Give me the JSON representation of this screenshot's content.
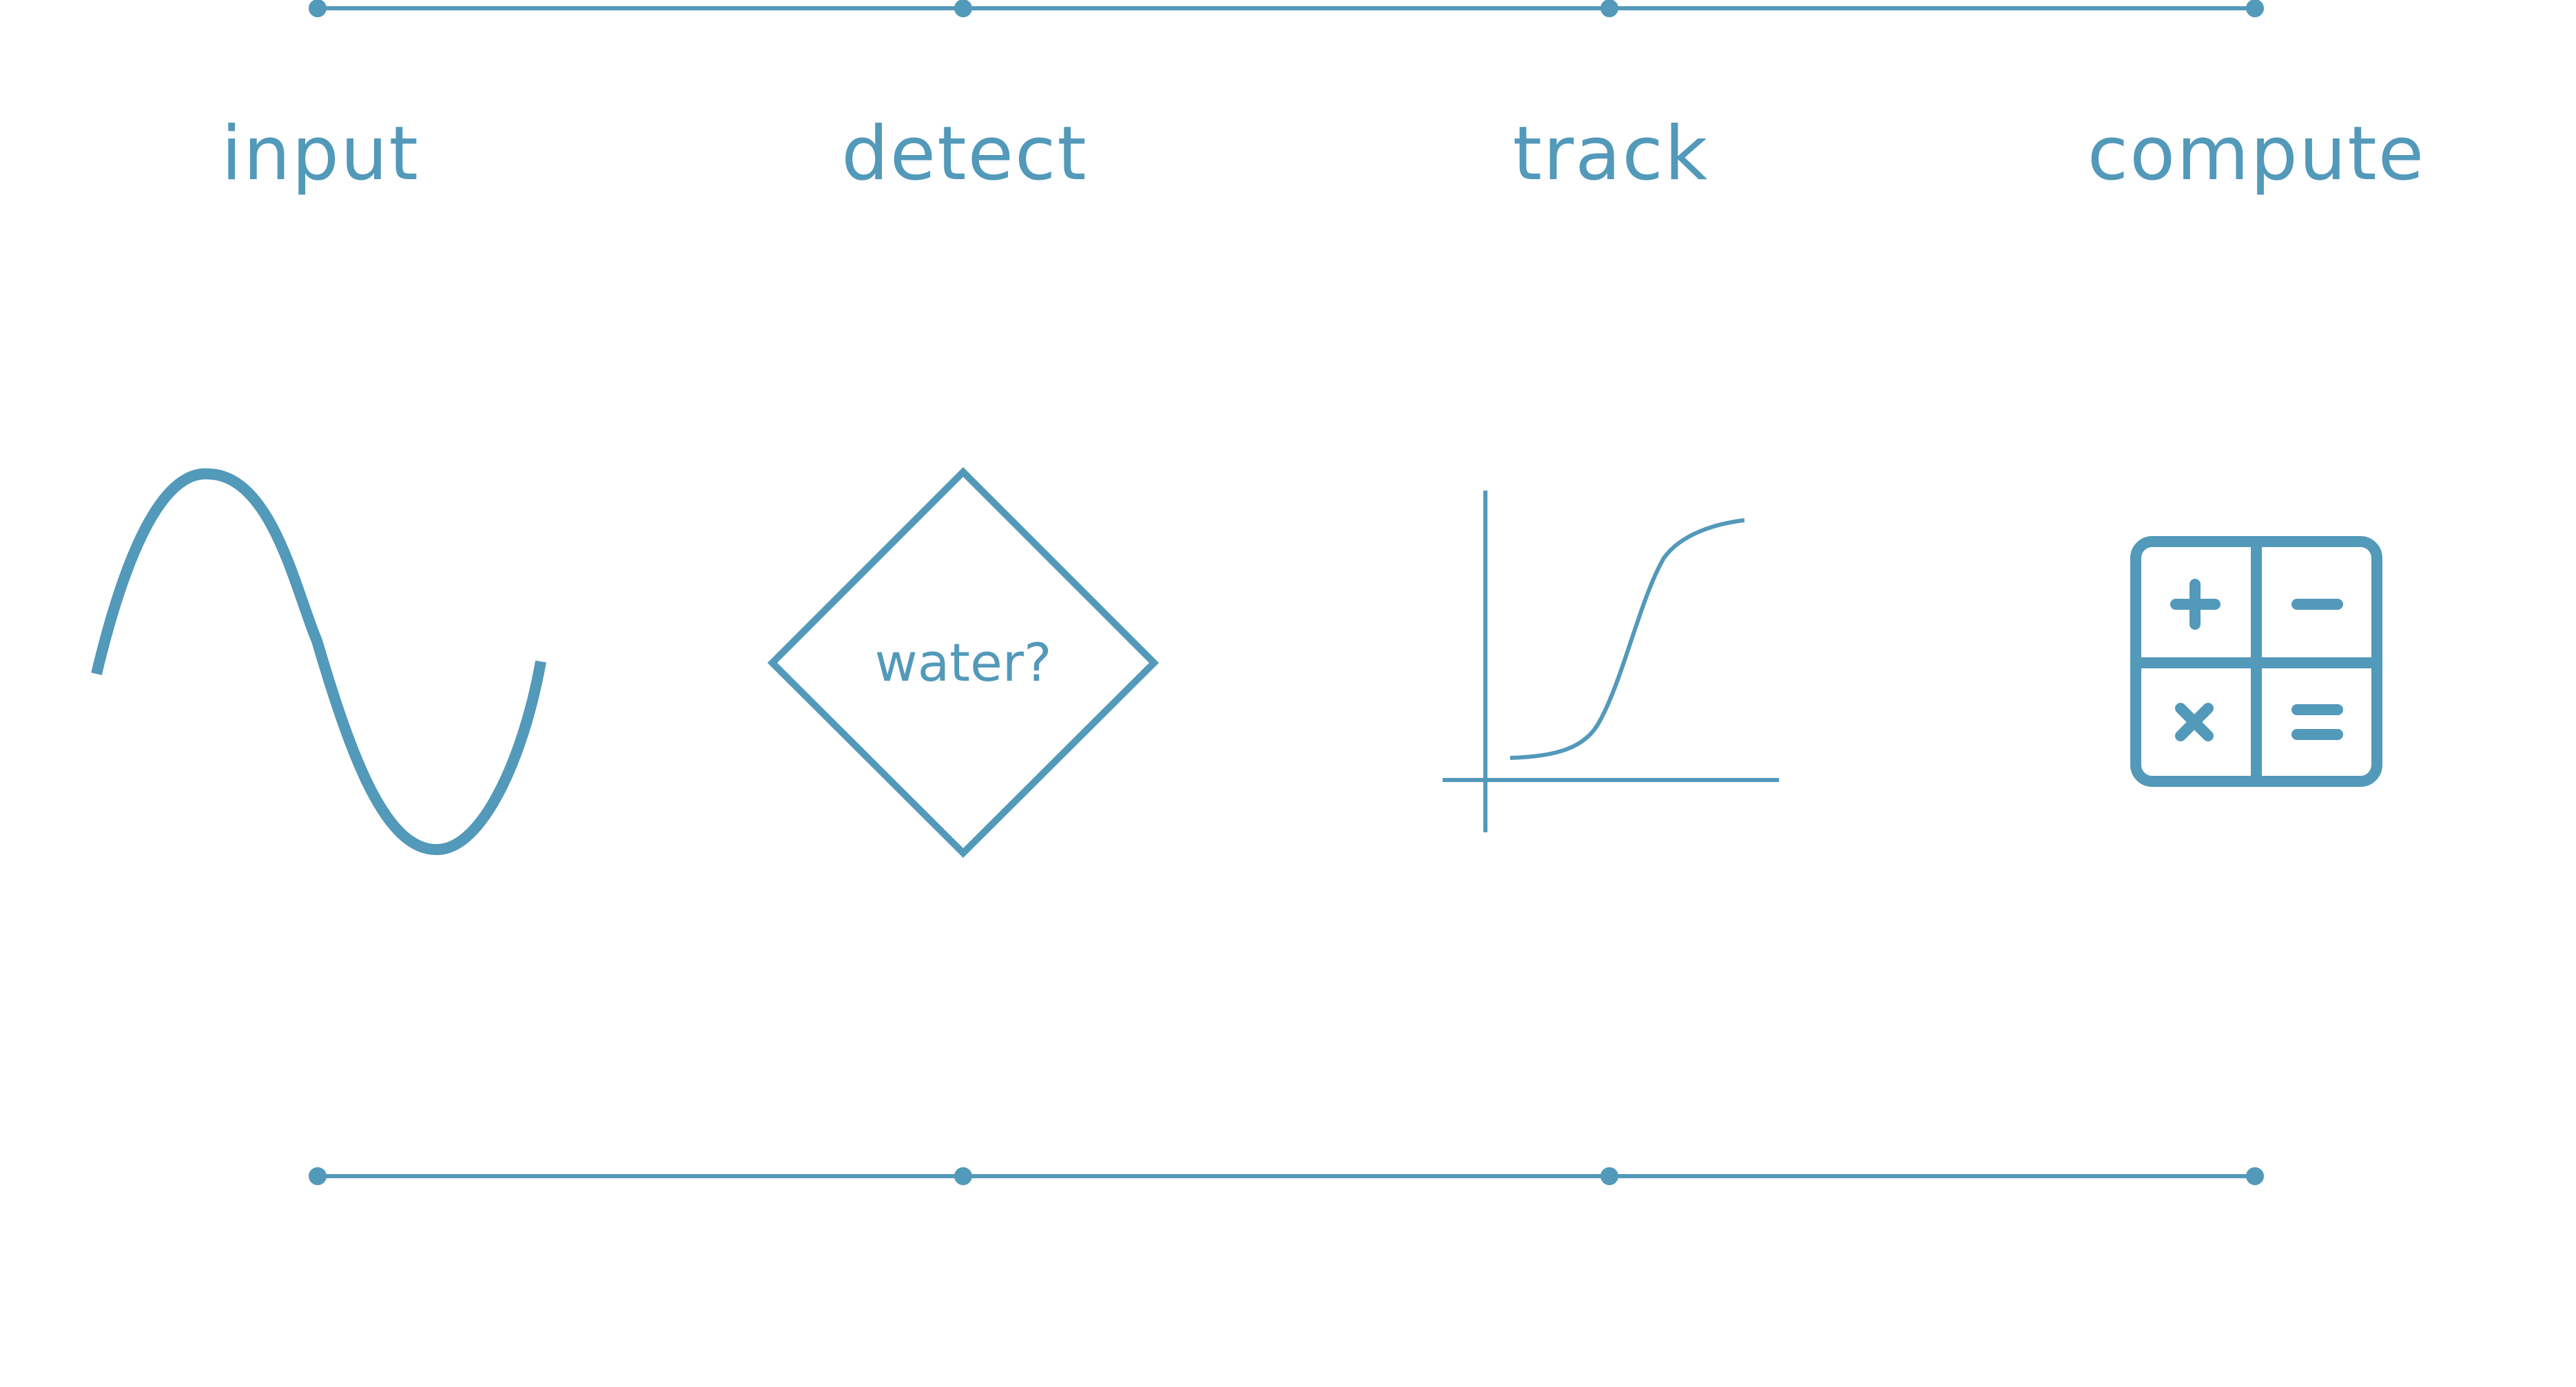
{
  "colors": {
    "accent": "#5299BA",
    "background": "#FFFFFF"
  },
  "steps": [
    {
      "label": "input",
      "icon": "sine-wave-icon"
    },
    {
      "label": "detect",
      "icon": "decision-diamond-icon",
      "decision_text": "water?"
    },
    {
      "label": "track",
      "icon": "sigmoid-curve-icon"
    },
    {
      "label": "compute",
      "icon": "calculator-icon"
    }
  ]
}
